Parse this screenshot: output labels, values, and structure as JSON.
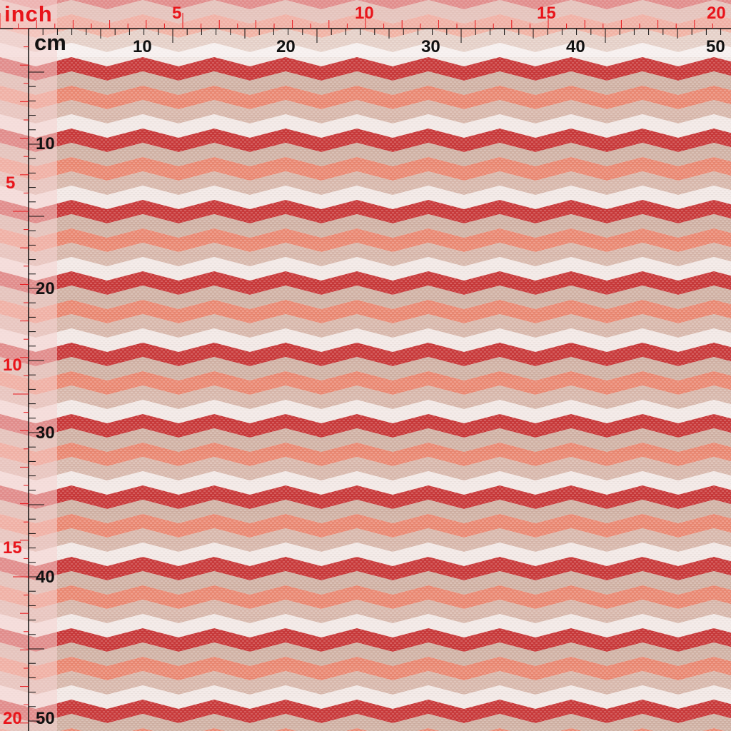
{
  "units": {
    "inch_label": "inch",
    "cm_label": "cm"
  },
  "ruler_top": {
    "inch_labels": [
      "5",
      "10",
      "15",
      "20"
    ],
    "cm_labels": [
      "10",
      "20",
      "30",
      "40",
      "50"
    ]
  },
  "ruler_left": {
    "inch_labels": [
      "5",
      "10",
      "15",
      "20"
    ],
    "cm_labels": [
      "10",
      "20",
      "30",
      "40",
      "50"
    ]
  },
  "fabric": {
    "pattern": "horizontal chevron / zigzag stripes on woven texture",
    "stripe_colors": [
      "#c93a3b",
      "#d2b3a6",
      "#eb8a74",
      "#d9b9ad",
      "#f3e9e6"
    ],
    "background_color": "#f2e6e2"
  },
  "colors": {
    "inch_accent": "#e8151b",
    "cm_ink": "#111111",
    "ruler_face": "#ffffff"
  }
}
